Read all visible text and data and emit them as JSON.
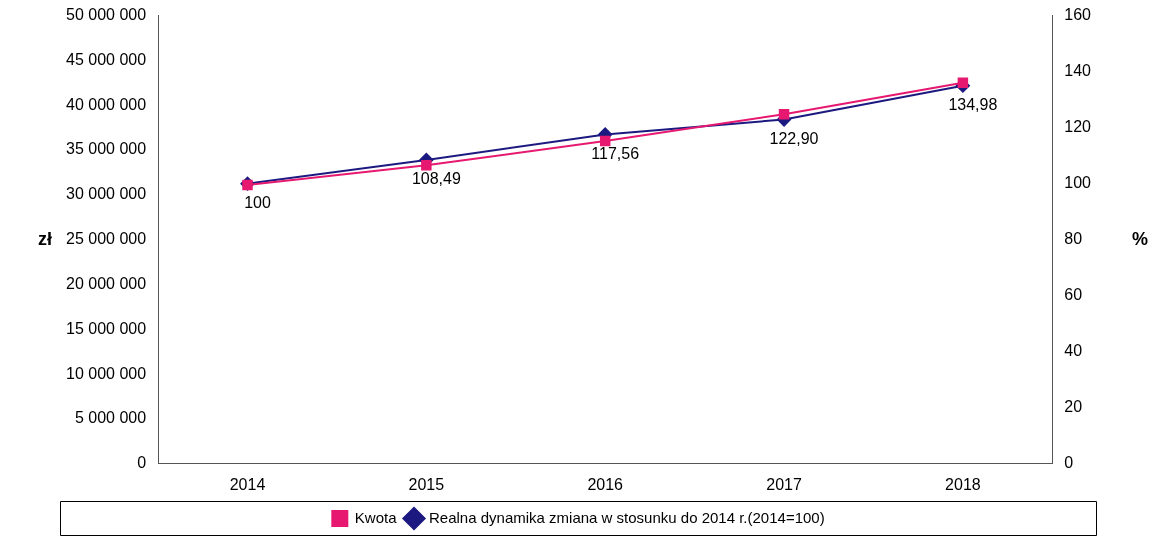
{
  "chart_data": {
    "type": "line",
    "categories": [
      "2014",
      "2015",
      "2016",
      "2017",
      "2018"
    ],
    "ylabel": "zł",
    "y2label": "%",
    "ylim": [
      0,
      50000000
    ],
    "yticks": [
      {
        "value": 0,
        "label": "0"
      },
      {
        "value": 5000000,
        "label": "5 000 000"
      },
      {
        "value": 10000000,
        "label": "10 000 000"
      },
      {
        "value": 15000000,
        "label": "15 000 000"
      },
      {
        "value": 20000000,
        "label": "20 000 000"
      },
      {
        "value": 25000000,
        "label": "25 000 000"
      },
      {
        "value": 30000000,
        "label": "30 000 000"
      },
      {
        "value": 35000000,
        "label": "35 000 000"
      },
      {
        "value": 40000000,
        "label": "40 000 000"
      },
      {
        "value": 45000000,
        "label": "45 000 000"
      },
      {
        "value": 50000000,
        "label": "50 000 000"
      }
    ],
    "y2lim": [
      0,
      160
    ],
    "y2ticks": [
      0,
      20,
      40,
      60,
      80,
      100,
      120,
      140,
      160
    ],
    "grid": false,
    "legend": "bottom",
    "line_style": "solid",
    "series": [
      {
        "name": "Kwota",
        "color": "#e6186f",
        "marker": "square",
        "values": [
          31100000,
          33300000,
          36000000,
          39000000,
          42500000
        ]
      },
      {
        "name": "Realna dynamika zmiana w stosunku do 2014 r.(2014=100)",
        "color": "#1c1a80",
        "marker": "diamond",
        "axis": "y2",
        "values": [
          100,
          108.49,
          117.56,
          122.9,
          134.98
        ],
        "value_labels": [
          "100",
          "108,49",
          "117,56",
          "122,90",
          "134,98"
        ]
      }
    ]
  }
}
